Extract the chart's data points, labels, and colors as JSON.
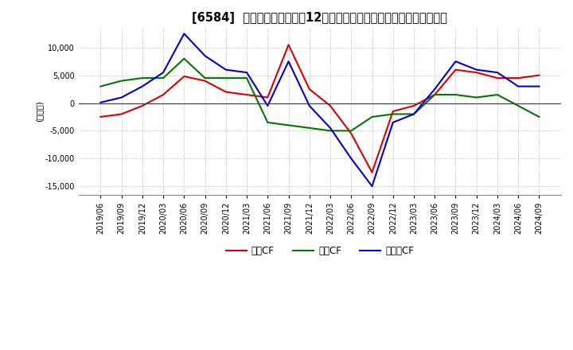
{
  "title": "[6584]  キャッシュフローの12か月移動合計の対前年同期増減額の推移",
  "ylabel": "(百万円)",
  "ylim": [
    -16500,
    13500
  ],
  "yticks": [
    -15000,
    -10000,
    -5000,
    0,
    5000,
    10000
  ],
  "background_color": "#ffffff",
  "grid_color": "#aaaaaa",
  "dates": [
    "2019/06",
    "2019/09",
    "2019/12",
    "2020/03",
    "2020/06",
    "2020/09",
    "2020/12",
    "2021/03",
    "2021/06",
    "2021/09",
    "2021/12",
    "2022/03",
    "2022/06",
    "2022/09",
    "2022/12",
    "2023/03",
    "2023/06",
    "2023/09",
    "2023/12",
    "2024/03",
    "2024/06",
    "2024/09"
  ],
  "eigyo_cf": [
    -2500,
    -2000,
    -500,
    1500,
    4800,
    4000,
    2000,
    1500,
    1000,
    10500,
    2500,
    -500,
    -5500,
    -12500,
    -1500,
    -500,
    1500,
    6000,
    5500,
    4500,
    4500,
    5000
  ],
  "toshi_cf": [
    3000,
    4000,
    4500,
    4500,
    8000,
    4500,
    4500,
    4500,
    -3500,
    -4000,
    -4500,
    -5000,
    -5000,
    -2500,
    -2000,
    -2000,
    1500,
    1500,
    1000,
    1500,
    -500,
    -2500
  ],
  "free_cf": [
    100,
    1000,
    3000,
    5500,
    12500,
    8500,
    6000,
    5500,
    -500,
    7500,
    -500,
    -4500,
    -10000,
    -15000,
    -3500,
    -2000,
    2500,
    7500,
    6000,
    5500,
    3000,
    3000
  ],
  "eigyo_color": "#dd0000",
  "toshi_color": "#007700",
  "free_color": "#0000cc",
  "tick_label_fontsize": 7,
  "title_fontsize": 10.5,
  "ylabel_fontsize": 7.5
}
